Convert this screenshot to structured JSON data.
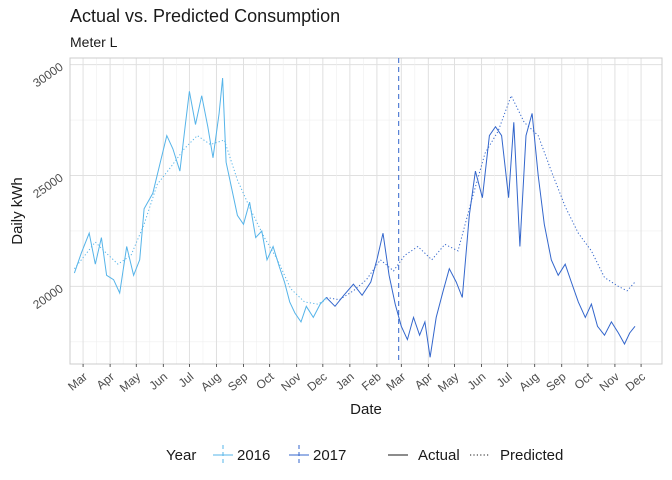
{
  "chart_data": {
    "type": "line",
    "title": "Actual vs. Predicted Consumption",
    "subtitle": "Meter L",
    "xlabel": "Date",
    "ylabel": "Daily kWh",
    "xlim": [
      "2016-02-15",
      "2017-12-25"
    ],
    "ylim": [
      16500,
      30300
    ],
    "grid": true,
    "y_ticks": [
      20000,
      25000,
      30000
    ],
    "x_ticks": [
      {
        "date": "2016-03-01",
        "label": "Mar"
      },
      {
        "date": "2016-04-01",
        "label": "Apr"
      },
      {
        "date": "2016-05-01",
        "label": "May"
      },
      {
        "date": "2016-06-01",
        "label": "Jun"
      },
      {
        "date": "2016-07-01",
        "label": "Jul"
      },
      {
        "date": "2016-08-01",
        "label": "Aug"
      },
      {
        "date": "2016-09-01",
        "label": "Sep"
      },
      {
        "date": "2016-10-01",
        "label": "Oct"
      },
      {
        "date": "2016-11-01",
        "label": "Nov"
      },
      {
        "date": "2016-12-01",
        "label": "Dec"
      },
      {
        "date": "2017-01-01",
        "label": "Jan"
      },
      {
        "date": "2017-02-01",
        "label": "Feb"
      },
      {
        "date": "2017-03-01",
        "label": "Mar"
      },
      {
        "date": "2017-04-01",
        "label": "Apr"
      },
      {
        "date": "2017-05-01",
        "label": "May"
      },
      {
        "date": "2017-06-01",
        "label": "Jun"
      },
      {
        "date": "2017-07-01",
        "label": "Jul"
      },
      {
        "date": "2017-08-01",
        "label": "Aug"
      },
      {
        "date": "2017-09-01",
        "label": "Sep"
      },
      {
        "date": "2017-10-01",
        "label": "Oct"
      },
      {
        "date": "2017-11-01",
        "label": "Nov"
      },
      {
        "date": "2017-12-01",
        "label": "Dec"
      }
    ],
    "vline": {
      "date": "2017-02-26",
      "color": "#3366cc"
    },
    "series": [
      {
        "name": "2016",
        "kind": "Actual",
        "color": "#56b4e9",
        "dash": "solid",
        "points": [
          [
            "2016-02-20",
            20600
          ],
          [
            "2016-02-28",
            21500
          ],
          [
            "2016-03-08",
            22400
          ],
          [
            "2016-03-15",
            21000
          ],
          [
            "2016-03-22",
            22200
          ],
          [
            "2016-03-28",
            20500
          ],
          [
            "2016-04-05",
            20300
          ],
          [
            "2016-04-12",
            19700
          ],
          [
            "2016-04-20",
            21800
          ],
          [
            "2016-04-28",
            20500
          ],
          [
            "2016-05-05",
            21200
          ],
          [
            "2016-05-10",
            23500
          ],
          [
            "2016-05-20",
            24200
          ],
          [
            "2016-05-28",
            25500
          ],
          [
            "2016-06-05",
            26800
          ],
          [
            "2016-06-12",
            26200
          ],
          [
            "2016-06-20",
            25200
          ],
          [
            "2016-06-26",
            27200
          ],
          [
            "2016-07-01",
            28800
          ],
          [
            "2016-07-08",
            27300
          ],
          [
            "2016-07-15",
            28600
          ],
          [
            "2016-07-22",
            27200
          ],
          [
            "2016-07-28",
            25800
          ],
          [
            "2016-08-04",
            27800
          ],
          [
            "2016-08-08",
            29400
          ],
          [
            "2016-08-12",
            25600
          ],
          [
            "2016-08-18",
            24500
          ],
          [
            "2016-08-25",
            23200
          ],
          [
            "2016-09-01",
            22800
          ],
          [
            "2016-09-08",
            23800
          ],
          [
            "2016-09-15",
            22200
          ],
          [
            "2016-09-22",
            22500
          ],
          [
            "2016-09-28",
            21200
          ],
          [
            "2016-10-05",
            21800
          ],
          [
            "2016-10-12",
            20900
          ],
          [
            "2016-10-18",
            20200
          ],
          [
            "2016-10-24",
            19300
          ],
          [
            "2016-10-30",
            18800
          ],
          [
            "2016-11-06",
            18400
          ],
          [
            "2016-11-12",
            19100
          ],
          [
            "2016-11-20",
            18600
          ],
          [
            "2016-11-28",
            19200
          ],
          [
            "2016-12-05",
            19500
          ]
        ]
      },
      {
        "name": "2016",
        "kind": "Predicted",
        "color": "#56b4e9",
        "dash": "dotted",
        "points": [
          [
            "2016-02-20",
            20800
          ],
          [
            "2016-03-01",
            21300
          ],
          [
            "2016-03-15",
            22000
          ],
          [
            "2016-03-25",
            21600
          ],
          [
            "2016-04-10",
            21000
          ],
          [
            "2016-04-25",
            21400
          ],
          [
            "2016-05-10",
            22800
          ],
          [
            "2016-05-25",
            24600
          ],
          [
            "2016-06-10",
            25400
          ],
          [
            "2016-06-25",
            26200
          ],
          [
            "2016-07-10",
            26800
          ],
          [
            "2016-07-25",
            26400
          ],
          [
            "2016-08-10",
            26600
          ],
          [
            "2016-08-25",
            24800
          ],
          [
            "2016-09-10",
            23400
          ],
          [
            "2016-09-25",
            22200
          ],
          [
            "2016-10-10",
            21200
          ],
          [
            "2016-10-25",
            19900
          ],
          [
            "2016-11-10",
            19300
          ],
          [
            "2016-11-25",
            19200
          ],
          [
            "2016-12-05",
            19400
          ]
        ]
      },
      {
        "name": "2017",
        "kind": "Actual",
        "color": "#3366cc",
        "dash": "solid",
        "points": [
          [
            "2016-12-05",
            19500
          ],
          [
            "2016-12-15",
            19100
          ],
          [
            "2016-12-25",
            19600
          ],
          [
            "2017-01-05",
            20100
          ],
          [
            "2017-01-15",
            19600
          ],
          [
            "2017-01-25",
            20200
          ],
          [
            "2017-02-01",
            21200
          ],
          [
            "2017-02-08",
            22400
          ],
          [
            "2017-02-15",
            20500
          ],
          [
            "2017-02-22",
            19200
          ],
          [
            "2017-03-01",
            18200
          ],
          [
            "2017-03-08",
            17600
          ],
          [
            "2017-03-15",
            18600
          ],
          [
            "2017-03-22",
            17800
          ],
          [
            "2017-03-28",
            18400
          ],
          [
            "2017-04-03",
            16800
          ],
          [
            "2017-04-10",
            18600
          ],
          [
            "2017-04-18",
            19800
          ],
          [
            "2017-04-25",
            20800
          ],
          [
            "2017-05-03",
            20200
          ],
          [
            "2017-05-10",
            19500
          ],
          [
            "2017-05-18",
            23200
          ],
          [
            "2017-05-25",
            25200
          ],
          [
            "2017-06-02",
            24000
          ],
          [
            "2017-06-10",
            26800
          ],
          [
            "2017-06-17",
            27200
          ],
          [
            "2017-06-24",
            26800
          ],
          [
            "2017-07-02",
            24000
          ],
          [
            "2017-07-08",
            27400
          ],
          [
            "2017-07-15",
            21800
          ],
          [
            "2017-07-22",
            26800
          ],
          [
            "2017-07-29",
            27800
          ],
          [
            "2017-08-05",
            25000
          ],
          [
            "2017-08-12",
            22800
          ],
          [
            "2017-08-20",
            21200
          ],
          [
            "2017-08-28",
            20500
          ],
          [
            "2017-09-05",
            21000
          ],
          [
            "2017-09-12",
            20200
          ],
          [
            "2017-09-20",
            19300
          ],
          [
            "2017-09-28",
            18600
          ],
          [
            "2017-10-05",
            19200
          ],
          [
            "2017-10-12",
            18200
          ],
          [
            "2017-10-20",
            17800
          ],
          [
            "2017-10-28",
            18400
          ],
          [
            "2017-11-05",
            17900
          ],
          [
            "2017-11-12",
            17400
          ],
          [
            "2017-11-18",
            17900
          ],
          [
            "2017-11-24",
            18200
          ]
        ]
      },
      {
        "name": "2017",
        "kind": "Predicted",
        "color": "#3366cc",
        "dash": "dotted",
        "points": [
          [
            "2016-12-05",
            19500
          ],
          [
            "2016-12-20",
            19400
          ],
          [
            "2017-01-05",
            19800
          ],
          [
            "2017-01-20",
            20300
          ],
          [
            "2017-02-05",
            21200
          ],
          [
            "2017-02-20",
            20700
          ],
          [
            "2017-03-05",
            21400
          ],
          [
            "2017-03-20",
            21800
          ],
          [
            "2017-04-05",
            21200
          ],
          [
            "2017-04-20",
            21900
          ],
          [
            "2017-05-05",
            21600
          ],
          [
            "2017-05-20",
            23800
          ],
          [
            "2017-06-05",
            26000
          ],
          [
            "2017-06-20",
            27000
          ],
          [
            "2017-07-05",
            28600
          ],
          [
            "2017-07-20",
            27400
          ],
          [
            "2017-08-05",
            26800
          ],
          [
            "2017-08-20",
            25200
          ],
          [
            "2017-09-05",
            23600
          ],
          [
            "2017-09-20",
            22400
          ],
          [
            "2017-10-05",
            21600
          ],
          [
            "2017-10-20",
            20400
          ],
          [
            "2017-11-05",
            20000
          ],
          [
            "2017-11-15",
            19800
          ],
          [
            "2017-11-24",
            20200
          ]
        ]
      }
    ],
    "legend": {
      "position": "bottom",
      "year_title": "Year",
      "year_items": [
        {
          "label": "2016",
          "color": "#56b4e9"
        },
        {
          "label": "2017",
          "color": "#3366cc"
        }
      ],
      "kind_items": [
        {
          "label": "Actual",
          "dash": "solid"
        },
        {
          "label": "Predicted",
          "dash": "dotted"
        }
      ]
    }
  }
}
